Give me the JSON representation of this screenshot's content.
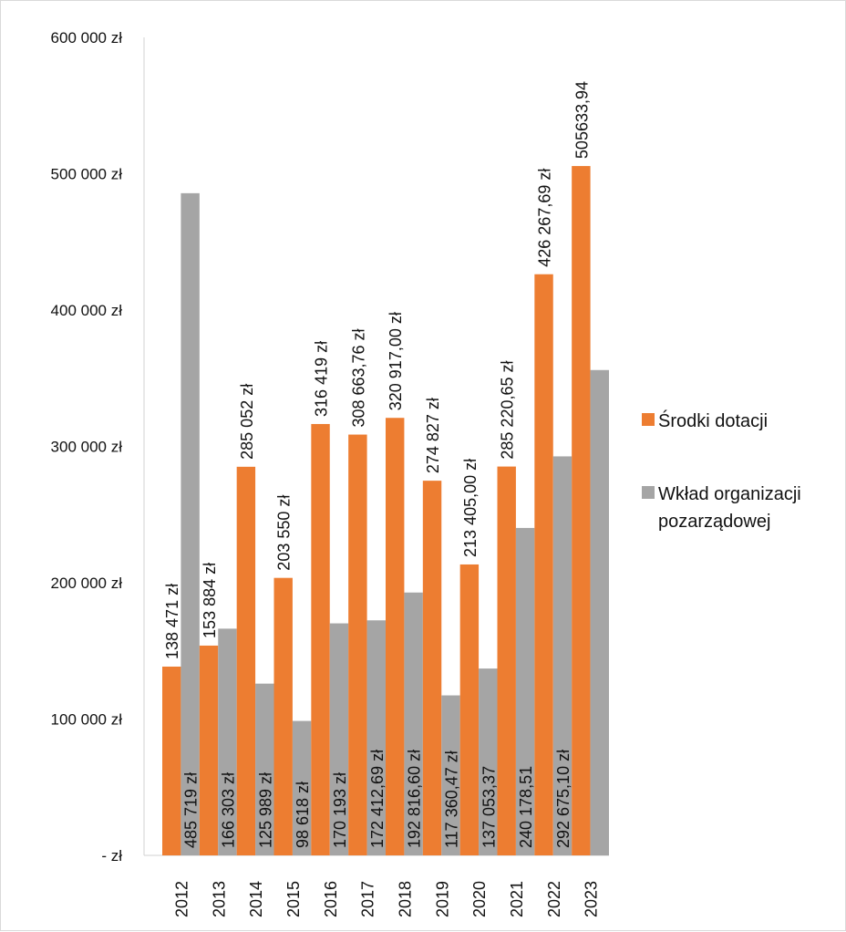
{
  "chart_data": {
    "type": "bar",
    "categories": [
      "2012",
      "2013",
      "2014",
      "2015",
      "2016",
      "2017",
      "2018",
      "2019",
      "2020",
      "2021",
      "2022",
      "2023"
    ],
    "series": [
      {
        "name": "Środki dotacji",
        "color": "#ed7d31",
        "values": [
          138471,
          153884,
          285052,
          203550,
          316419,
          308663.76,
          320917.0,
          274827,
          213405.0,
          285220.65,
          426267.69,
          505633.94
        ],
        "labels": [
          "138 471 zł",
          "153 884 zł",
          "285 052 zł",
          "203 550 zł",
          "316 419 zł",
          "308 663,76 zł",
          "320 917,00 zł",
          "274 827 zł",
          "213 405,00 zł",
          "285 220,65 zł",
          "426 267,69 zł",
          "505633,94"
        ]
      },
      {
        "name": "Wkład organizacji pozarządowej",
        "name_lines": [
          "Wkład organizacji",
          "pozarządowej"
        ],
        "color": "#a5a5a5",
        "values": [
          485719,
          166303,
          125989,
          98618,
          170193,
          172412.69,
          192816.6,
          117360.47,
          137053.37,
          240178.51,
          292675.1,
          356000
        ],
        "labels": [
          "485 719 zł",
          "166 303 zł",
          "125 989 zł",
          "98 618 zł",
          "170 193 zł",
          "172 412,69 zł",
          "192 816,60 zł",
          "117 360,47 zł",
          "137 053,37",
          "240 178,51",
          "292 675,10 zł",
          ""
        ]
      }
    ],
    "y_ticks": [
      0,
      100000,
      200000,
      300000,
      400000,
      500000,
      600000
    ],
    "y_tick_labels": [
      "- zł",
      "100 000 zł",
      "200 000 zł",
      "300 000 zł",
      "400 000 zł",
      "500 000 zł",
      "600 000 zł"
    ],
    "ylim": [
      0,
      600000
    ],
    "grid": false,
    "legend_position": "right",
    "title": "",
    "xlabel": "",
    "ylabel": ""
  }
}
